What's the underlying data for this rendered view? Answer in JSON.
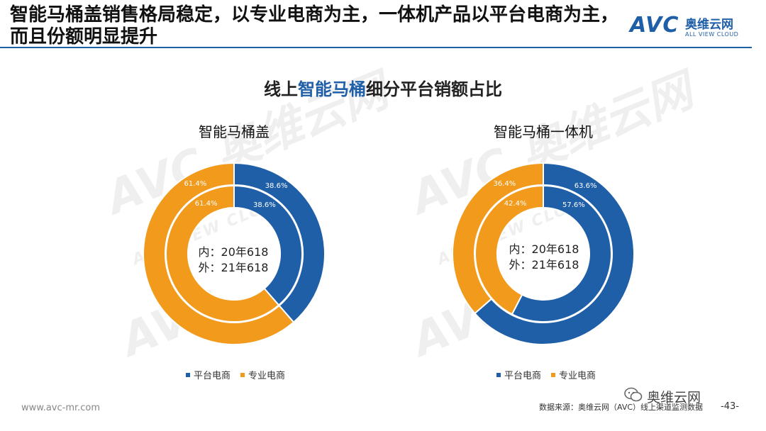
{
  "header": {
    "title": "智能马桶盖销售格局稳定，以专业电商为主，一体机产品以平台电商为主，而且份额明显提升",
    "rule_color": "#1f5fa8"
  },
  "logo": {
    "mark": "AVC",
    "cn": "奥维云网",
    "en": "ALL VIEW CLOUD"
  },
  "chart": {
    "title_prefix": "线上",
    "title_highlight": "智能马桶",
    "title_suffix": "细分平台销额占比"
  },
  "colors": {
    "platform": "#1f5fa8",
    "professional": "#f19a1c",
    "highlight": "#1f5fa8"
  },
  "chart_data": [
    {
      "type": "pie",
      "title": "智能马桶盖",
      "center_label_inner": "内：20年618",
      "center_label_outer": "外：21年618",
      "rings": [
        {
          "name": "20年618",
          "position": "inner",
          "slices": [
            {
              "label": "平台电商",
              "value": 38.6,
              "text": "38.6%"
            },
            {
              "label": "专业电商",
              "value": 61.4,
              "text": "61.4%"
            }
          ]
        },
        {
          "name": "21年618",
          "position": "outer",
          "slices": [
            {
              "label": "平台电商",
              "value": 38.6,
              "text": "38.6%"
            },
            {
              "label": "专业电商",
              "value": 61.4,
              "text": "61.4%"
            }
          ]
        }
      ],
      "legend": [
        "平台电商",
        "专业电商"
      ],
      "legend_placement": "bottom"
    },
    {
      "type": "pie",
      "title": "智能马桶一体机",
      "center_label_inner": "内：20年618",
      "center_label_outer": "外：21年618",
      "rings": [
        {
          "name": "20年618",
          "position": "inner",
          "slices": [
            {
              "label": "平台电商",
              "value": 57.6,
              "text": "57.6%"
            },
            {
              "label": "专业电商",
              "value": 42.4,
              "text": "42.4%"
            }
          ]
        },
        {
          "name": "21年618",
          "position": "outer",
          "slices": [
            {
              "label": "平台电商",
              "value": 63.6,
              "text": "63.6%"
            },
            {
              "label": "专业电商",
              "value": 36.4,
              "text": "36.4%"
            }
          ]
        }
      ],
      "legend": [
        "平台电商",
        "专业电商"
      ],
      "legend_placement": "bottom"
    }
  ],
  "footer": {
    "url": "www.avc-mr.com",
    "source": "数据来源：奥维云网（AVC）线上渠道监测数据",
    "brand": "奥维云网",
    "page": "-43-"
  }
}
